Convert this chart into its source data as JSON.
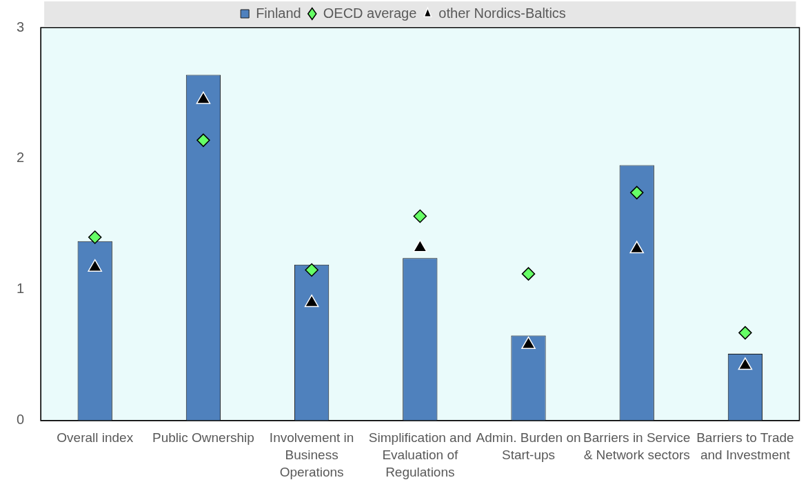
{
  "chart_data": {
    "type": "bar",
    "categories": [
      "Overall index",
      "Public Ownership",
      "Involvement in Business Operations",
      "Simplification and Evaluation of Regulations",
      "Admin. Burden on Start-ups",
      "Barriers in Service & Network sectors",
      "Barriers to Trade and Investment"
    ],
    "series": [
      {
        "name": "Finland",
        "color": "#4f81bd",
        "values": [
          1.37,
          2.64,
          1.19,
          1.24,
          0.65,
          1.95,
          0.51
        ]
      },
      {
        "name": "OECD average",
        "type": "scatter",
        "marker": "diamond",
        "color": "#66ff66",
        "values": [
          1.4,
          2.14,
          1.15,
          1.56,
          1.12,
          1.74,
          0.67
        ]
      },
      {
        "name": "other Nordics-Baltics",
        "type": "scatter",
        "marker": "triangle",
        "color": "#000000",
        "values": [
          1.17,
          2.45,
          0.9,
          1.32,
          0.58,
          1.31,
          0.42
        ]
      }
    ],
    "ylim": [
      0,
      3
    ],
    "yticks": [
      0,
      1,
      2,
      3
    ],
    "grid": false,
    "legend": "top"
  }
}
